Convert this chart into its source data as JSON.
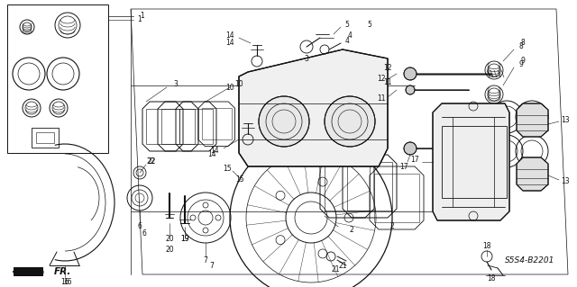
{
  "background_color": "#ffffff",
  "line_color": "#111111",
  "fig_width": 6.4,
  "fig_height": 3.19,
  "dpi": 100,
  "diagram_code_text": "S5S4-B2201",
  "label_fontsize": 5.5,
  "code_fontsize": 6.5
}
